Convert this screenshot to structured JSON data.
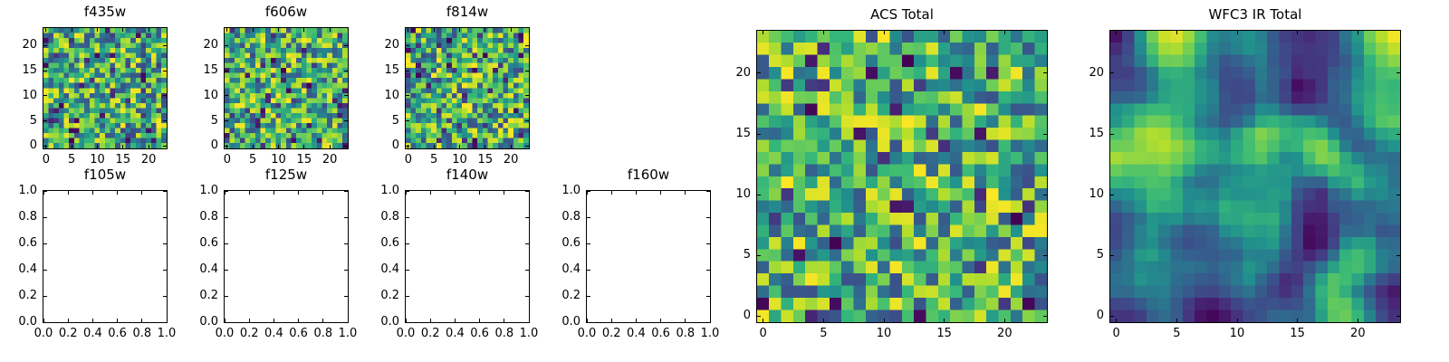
{
  "figure": {
    "background": "#ffffff",
    "frame_color": "#000000",
    "text_color": "#000000",
    "description": "Matplotlib-style figure: three small noise heatmaps (top row), four empty axes (bottom row), and two large noise heatmaps on the right."
  },
  "chart_data": [
    {
      "id": "f435w",
      "title": "f435w",
      "type": "heatmap",
      "grid": [
        24,
        24
      ],
      "extent": [
        -0.5,
        23.5
      ],
      "colormap": "viridis",
      "value_range": [
        0,
        1
      ],
      "seed": 435,
      "smoothing": 0,
      "x_ticks": {
        "values": [
          0,
          5,
          10,
          15,
          20
        ],
        "labels": [
          "0",
          "5",
          "10",
          "15",
          "20"
        ]
      },
      "y_ticks": {
        "values": [
          0,
          5,
          10,
          15,
          20
        ],
        "labels": [
          "0",
          "5",
          "10",
          "15",
          "20"
        ]
      },
      "note": "random pixel noise; individual cell values not labeled in figure"
    },
    {
      "id": "f606w",
      "title": "f606w",
      "type": "heatmap",
      "grid": [
        24,
        24
      ],
      "extent": [
        -0.5,
        23.5
      ],
      "colormap": "viridis",
      "value_range": [
        0,
        1
      ],
      "seed": 606,
      "smoothing": 0,
      "x_ticks": {
        "values": [
          0,
          5,
          10,
          15,
          20
        ],
        "labels": [
          "0",
          "5",
          "10",
          "15",
          "20"
        ]
      },
      "y_ticks": {
        "values": [
          0,
          5,
          10,
          15,
          20
        ],
        "labels": [
          "0",
          "5",
          "10",
          "15",
          "20"
        ]
      },
      "note": "random pixel noise; individual cell values not labeled in figure"
    },
    {
      "id": "f814w",
      "title": "f814w",
      "type": "heatmap",
      "grid": [
        24,
        24
      ],
      "extent": [
        -0.5,
        23.5
      ],
      "colormap": "viridis",
      "value_range": [
        0,
        1
      ],
      "seed": 814,
      "smoothing": 0,
      "x_ticks": {
        "values": [
          0,
          5,
          10,
          15,
          20
        ],
        "labels": [
          "0",
          "5",
          "10",
          "15",
          "20"
        ]
      },
      "y_ticks": {
        "values": [
          0,
          5,
          10,
          15,
          20
        ],
        "labels": [
          "0",
          "5",
          "10",
          "15",
          "20"
        ]
      },
      "note": "random pixel noise; individual cell values not labeled in figure"
    },
    {
      "id": "f105w",
      "title": "f105w",
      "type": "empty",
      "xlim": [
        0,
        1
      ],
      "ylim": [
        0,
        1
      ],
      "x_ticks": {
        "values": [
          0,
          0.2,
          0.4,
          0.6,
          0.8,
          1.0
        ],
        "labels": [
          "0.0",
          "0.2",
          "0.4",
          "0.6",
          "0.8",
          "1.0"
        ]
      },
      "y_ticks": {
        "values": [
          0,
          0.2,
          0.4,
          0.6,
          0.8,
          1.0
        ],
        "labels": [
          "0.0",
          "0.2",
          "0.4",
          "0.6",
          "0.8",
          "1.0"
        ]
      },
      "note": "empty axes, no data plotted"
    },
    {
      "id": "f125w",
      "title": "f125w",
      "type": "empty",
      "xlim": [
        0,
        1
      ],
      "ylim": [
        0,
        1
      ],
      "x_ticks": {
        "values": [
          0,
          0.2,
          0.4,
          0.6,
          0.8,
          1.0
        ],
        "labels": [
          "0.0",
          "0.2",
          "0.4",
          "0.6",
          "0.8",
          "1.0"
        ]
      },
      "y_ticks": {
        "values": [
          0,
          0.2,
          0.4,
          0.6,
          0.8,
          1.0
        ],
        "labels": [
          "0.0",
          "0.2",
          "0.4",
          "0.6",
          "0.8",
          "1.0"
        ]
      },
      "note": "empty axes, no data plotted"
    },
    {
      "id": "f140w",
      "title": "f140w",
      "type": "empty",
      "xlim": [
        0,
        1
      ],
      "ylim": [
        0,
        1
      ],
      "x_ticks": {
        "values": [
          0,
          0.2,
          0.4,
          0.6,
          0.8,
          1.0
        ],
        "labels": [
          "0.0",
          "0.2",
          "0.4",
          "0.6",
          "0.8",
          "1.0"
        ]
      },
      "y_ticks": {
        "values": [
          0,
          0.2,
          0.4,
          0.6,
          0.8,
          1.0
        ],
        "labels": [
          "0.0",
          "0.2",
          "0.4",
          "0.6",
          "0.8",
          "1.0"
        ]
      },
      "note": "empty axes, no data plotted"
    },
    {
      "id": "f160w",
      "title": "f160w",
      "type": "empty",
      "xlim": [
        0,
        1
      ],
      "ylim": [
        0,
        1
      ],
      "x_ticks": {
        "values": [
          0,
          0.2,
          0.4,
          0.6,
          0.8,
          1.0
        ],
        "labels": [
          "0.0",
          "0.2",
          "0.4",
          "0.6",
          "0.8",
          "1.0"
        ]
      },
      "y_ticks": {
        "values": [
          0,
          0.2,
          0.4,
          0.6,
          0.8,
          1.0
        ],
        "labels": [
          "0.0",
          "0.2",
          "0.4",
          "0.6",
          "0.8",
          "1.0"
        ]
      },
      "note": "empty axes, no data plotted"
    },
    {
      "id": "acs_total",
      "title": "ACS Total",
      "type": "heatmap",
      "grid": [
        24,
        24
      ],
      "extent": [
        -0.5,
        23.5
      ],
      "colormap": "viridis",
      "value_range": [
        0,
        1
      ],
      "seed": 2024,
      "smoothing": 0,
      "x_ticks": {
        "values": [
          0,
          5,
          10,
          15,
          20
        ],
        "labels": [
          "0",
          "5",
          "10",
          "15",
          "20"
        ]
      },
      "y_ticks": {
        "values": [
          0,
          5,
          10,
          15,
          20
        ],
        "labels": [
          "0",
          "5",
          "10",
          "15",
          "20"
        ]
      },
      "note": "random pixel noise; individual cell values not labeled in figure"
    },
    {
      "id": "wfc3_ir_total",
      "title": "WFC3 IR Total",
      "type": "heatmap",
      "grid": [
        24,
        24
      ],
      "extent": [
        -0.5,
        23.5
      ],
      "colormap": "viridis",
      "value_range": [
        0,
        1
      ],
      "seed": 777,
      "smoothing": 2,
      "x_ticks": {
        "values": [
          0,
          5,
          10,
          15,
          20
        ],
        "labels": [
          "0",
          "5",
          "10",
          "15",
          "20"
        ]
      },
      "y_ticks": {
        "values": [
          0,
          5,
          10,
          15,
          20
        ],
        "labels": [
          "0",
          "5",
          "10",
          "15",
          "20"
        ]
      },
      "note": "spatially-correlated (smoothed) random noise; individual cell values not labeled in figure"
    }
  ],
  "colors": {
    "colormap_low": "#440154",
    "colormap_mid": "#21918c",
    "colormap_high": "#fde725"
  }
}
